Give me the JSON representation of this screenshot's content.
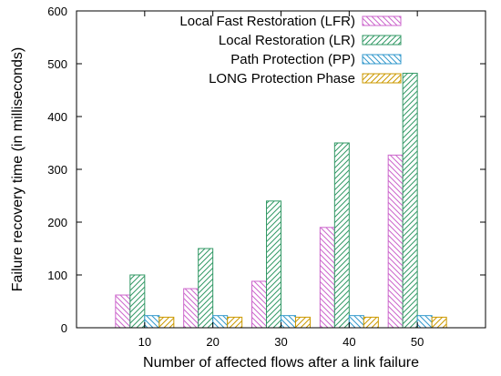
{
  "chart_data": {
    "type": "bar",
    "xlabel": "Number of affected flows after a link failure",
    "ylabel": "Failure recovery time (in milliseconds)",
    "categories": [
      "10",
      "20",
      "30",
      "40",
      "50"
    ],
    "ylim": [
      0,
      600
    ],
    "yticks": [
      "0",
      "100",
      "200",
      "300",
      "400",
      "500",
      "600"
    ],
    "grid": false,
    "legend_position": "top-right",
    "series": [
      {
        "name": "Local Fast Restoration (LFR)",
        "values": [
          62,
          74,
          88,
          190,
          327
        ],
        "color": "#cc66cc",
        "pattern": "hatch-back"
      },
      {
        "name": "Local Restoration (LR)",
        "values": [
          100,
          150,
          240,
          350,
          482
        ],
        "color": "#339966",
        "pattern": "hatch-fwd"
      },
      {
        "name": "Path Protection (PP)",
        "values": [
          23,
          23,
          23,
          23,
          23
        ],
        "color": "#3399cc",
        "pattern": "hatch-back"
      },
      {
        "name": "LONG Protection Phase",
        "values": [
          20,
          20,
          20,
          20,
          20
        ],
        "color": "#cc9900",
        "pattern": "hatch-fwd"
      }
    ]
  }
}
